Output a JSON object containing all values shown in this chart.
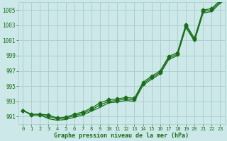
{
  "x": [
    0,
    1,
    2,
    3,
    4,
    5,
    6,
    7,
    8,
    9,
    10,
    11,
    12,
    13,
    14,
    15,
    16,
    17,
    18,
    19,
    20,
    21,
    22,
    23
  ],
  "line1": [
    991.8,
    991.3,
    991.3,
    991.2,
    990.8,
    990.9,
    991.3,
    991.6,
    992.1,
    992.8,
    993.2,
    993.3,
    993.5,
    993.4,
    995.5,
    996.3,
    997.0,
    998.9,
    999.4,
    1003.1,
    1001.3,
    1005.0,
    1005.2,
    1006.3
  ],
  "line2": [
    991.8,
    991.2,
    991.2,
    991.0,
    990.7,
    990.8,
    991.1,
    991.4,
    991.9,
    992.5,
    993.0,
    993.1,
    993.3,
    993.2,
    995.3,
    996.1,
    996.8,
    998.7,
    999.2,
    1002.9,
    1001.1,
    1004.8,
    1005.0,
    1006.1
  ],
  "line3": [
    991.8,
    991.2,
    991.2,
    990.7,
    990.5,
    990.6,
    990.9,
    991.2,
    991.7,
    992.2,
    992.8,
    992.9,
    993.1,
    993.0,
    995.1,
    995.9,
    996.6,
    998.5,
    999.0,
    1002.7,
    1000.9,
    1004.6,
    1004.8,
    1005.9
  ],
  "line_color": "#1a6e1a",
  "bg_color": "#cce8e8",
  "grid_color": "#aacccc",
  "text_color": "#1a6e1a",
  "xlabel": "Graphe pression niveau de la mer (hPa)",
  "ylim": [
    990.0,
    1006.0
  ],
  "yticks": [
    991,
    993,
    995,
    997,
    999,
    1001,
    1003,
    1005
  ],
  "xticks": [
    0,
    1,
    2,
    3,
    4,
    5,
    6,
    7,
    8,
    9,
    10,
    11,
    12,
    13,
    14,
    15,
    16,
    17,
    18,
    19,
    20,
    21,
    22,
    23
  ],
  "marker": "D",
  "markersize": 2.5,
  "linewidth": 0.9
}
